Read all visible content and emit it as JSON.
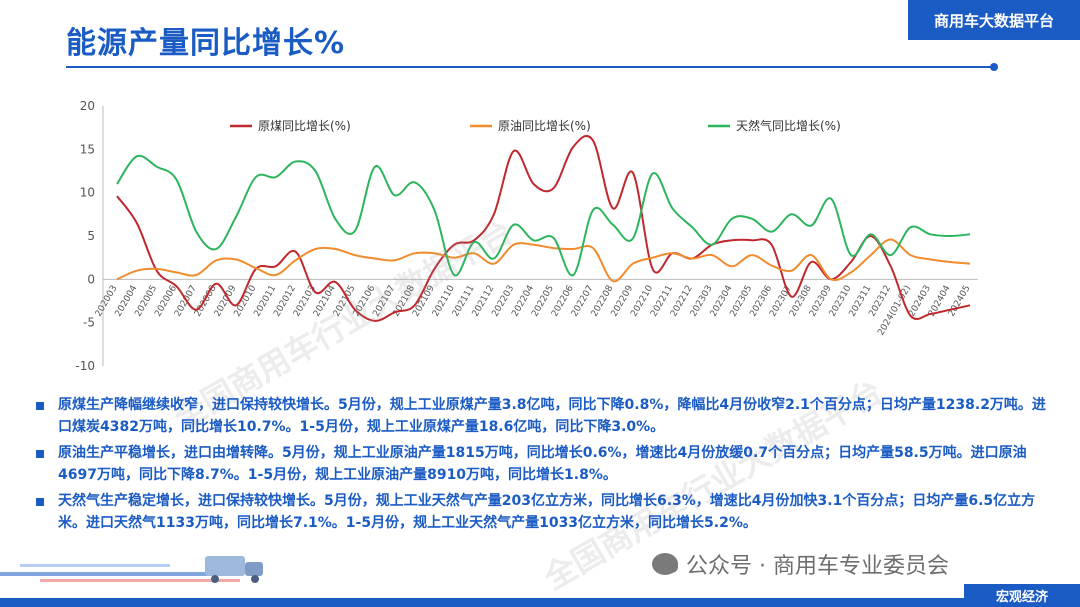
{
  "header": {
    "title": "能源产量同比增长%",
    "brand": "商用车大数据平台"
  },
  "watermark": {
    "text": "全国商用车行业大数据平台"
  },
  "chart_data": {
    "type": "line",
    "title": "",
    "xlabel": "",
    "ylabel": "",
    "ylim": [
      -10,
      20
    ],
    "yticks": [
      -10,
      -5,
      0,
      5,
      10,
      15,
      20
    ],
    "grid": false,
    "legend_position": "top",
    "categories": [
      "202003",
      "202004",
      "202005",
      "202006",
      "202007",
      "202008",
      "202009",
      "202010",
      "202011",
      "202012",
      "202103",
      "202104",
      "202105",
      "202106",
      "202107",
      "202108",
      "202109",
      "202110",
      "202111",
      "202112",
      "202203",
      "202204",
      "202205",
      "202206",
      "202207",
      "202208",
      "202209",
      "202210",
      "202211",
      "202212",
      "202303",
      "202304",
      "202305",
      "202306",
      "202307",
      "202308",
      "202309",
      "202310",
      "202311",
      "202312",
      "2024(01-02)",
      "202403",
      "202404",
      "202405"
    ],
    "series": [
      {
        "name": "原煤同比增长(%)",
        "color": "#c0282d",
        "values": [
          9.6,
          6.5,
          1,
          -0.8,
          -3.5,
          -0.5,
          -3,
          1.2,
          1.5,
          3.2,
          -1.5,
          -0.3,
          -3.5,
          -4.8,
          -3.8,
          -3,
          1.2,
          4,
          4.5,
          7.5,
          14.8,
          11,
          10.5,
          15.3,
          16,
          8.2,
          12.3,
          1.2,
          3,
          2.4,
          4,
          4.5,
          4.5,
          4,
          -2,
          2,
          0,
          2,
          5,
          1.5,
          -4.2,
          -4,
          -3.5,
          -3
        ]
      },
      {
        "name": "原油同比增长(%)",
        "color": "#f08c2e",
        "values": [
          0,
          1,
          1.2,
          0.8,
          0.5,
          2.2,
          2.3,
          1.3,
          0.5,
          2.2,
          3.5,
          3.5,
          2.8,
          2.4,
          2.2,
          3,
          3,
          2.5,
          3,
          1.8,
          4,
          4,
          3.6,
          3.5,
          3.6,
          -0.2,
          1.8,
          2.5,
          3,
          2.4,
          2.8,
          1.5,
          2.8,
          1.6,
          1,
          2.8,
          0,
          0.8,
          2.8,
          4.6,
          2.8,
          2.3,
          2,
          1.8
        ]
      },
      {
        "name": "天然气同比增长(%)",
        "color": "#2db55d",
        "values": [
          11,
          14.2,
          13,
          11.5,
          5.5,
          3.5,
          7.2,
          11.8,
          11.8,
          13.6,
          12.5,
          7,
          5.6,
          13,
          9.7,
          11.2,
          8,
          0.5,
          4.3,
          2.4,
          6.3,
          4.5,
          4.8,
          0.5,
          8,
          6.3,
          4.7,
          12.2,
          8.2,
          6,
          4,
          7,
          7,
          5.5,
          7.5,
          6.2,
          9.3,
          2.8,
          5.2,
          2.8,
          6,
          5.2,
          5,
          5.2
        ]
      }
    ]
  },
  "notes": [
    "原煤生产降幅继续收窄，进口保持较快增长。5月份，规上工业原煤产量3.8亿吨，同比下降0.8%，降幅比4月份收窄2.1个百分点；日均产量1238.2万吨。进口煤炭4382万吨，同比增长10.7%。1-5月份，规上工业原煤产量18.6亿吨，同比下降3.0%。",
    "原油生产平稳增长，进口由增转降。5月份，规上工业原油产量1815万吨，同比增长0.6%，增速比4月份放缓0.7个百分点；日均产量58.5万吨。进口原油4697万吨，同比下降8.7%。1-5月份，规上工业原油产量8910万吨，同比增长1.8%。",
    "天然气生产稳定增长，进口保持较快增长。5月份，规上工业天然气产量203亿立方米，同比增长6.3%，增速比4月份加快3.1个百分点；日均产量6.5亿立方米。进口天然气1133万吨，同比增长7.1%。1-5月份，规上工业天然气产量1033亿立方米，同比增长5.2%。"
  ],
  "footer": {
    "source": "公众号 · 商用车专业委员会",
    "tag": "宏观经济",
    "icon": "wechat-icon"
  },
  "colors": {
    "accent": "#1a5bc4"
  }
}
